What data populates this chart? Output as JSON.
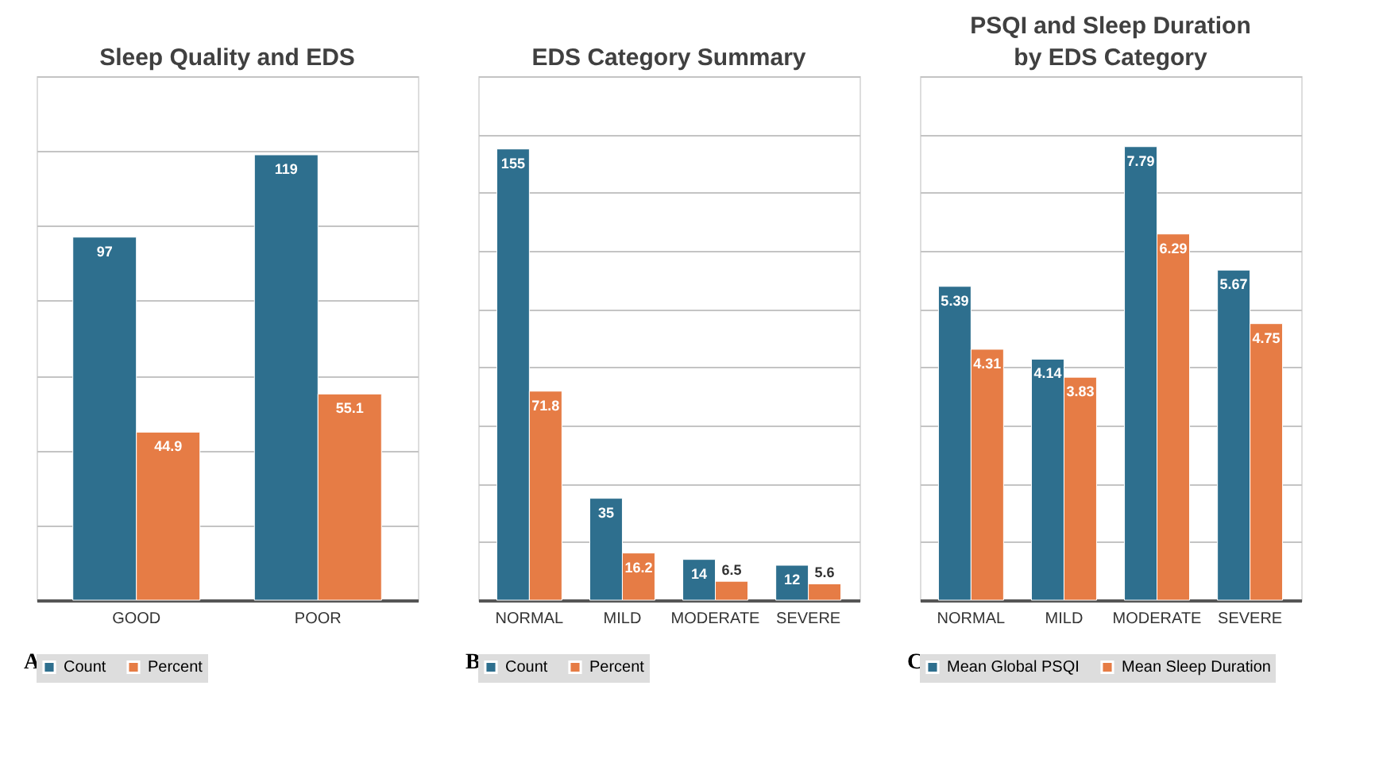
{
  "chart_data": [
    {
      "type": "bar",
      "title": "Sleep Quality and EDS",
      "categories": [
        "GOOD",
        "POOR"
      ],
      "series": [
        {
          "name": "Count",
          "color": "#2e6f8e",
          "values": [
            97,
            119
          ]
        },
        {
          "name": "Percent",
          "color": "#e67c45",
          "values": [
            44.9,
            55.1
          ]
        }
      ],
      "ylim": [
        0,
        140
      ],
      "yticks": [
        {
          "value": 0,
          "label": null
        },
        {
          "value": 20,
          "label": null
        },
        {
          "value": 40,
          "label": null
        },
        {
          "value": 60,
          "label": null
        },
        {
          "value": 80,
          "label": null
        },
        {
          "value": 100,
          "label": null
        },
        {
          "value": 120,
          "label": null
        },
        {
          "value": 140,
          "label": null
        }
      ],
      "tick_labels": "x",
      "grid": "y",
      "legend": "bottom",
      "data_labels": true,
      "annotations": [
        "A"
      ]
    },
    {
      "type": "bar",
      "title": "EDS Category Summary",
      "categories": [
        "NORMAL",
        "MILD",
        "MODERATE",
        "SEVERE"
      ],
      "series": [
        {
          "name": "Count",
          "color": "#2e6f8e",
          "values": [
            155,
            35,
            14,
            12
          ]
        },
        {
          "name": "Percent",
          "color": "#e67c45",
          "values": [
            71.8,
            16.2,
            6.5,
            5.6
          ]
        }
      ],
      "ylim": [
        0,
        180
      ],
      "yticks": [
        {
          "value": 0,
          "label": null
        },
        {
          "value": 20,
          "label": null
        },
        {
          "value": 40,
          "label": null
        },
        {
          "value": 60,
          "label": null
        },
        {
          "value": 80,
          "label": null
        },
        {
          "value": 100,
          "label": null
        },
        {
          "value": 120,
          "label": null
        },
        {
          "value": 140,
          "label": null
        },
        {
          "value": 160,
          "label": null
        },
        {
          "value": 180,
          "label": null
        }
      ],
      "tick_labels": "x",
      "grid": "y",
      "legend": "bottom",
      "data_labels": true,
      "annotations": [
        "B"
      ]
    },
    {
      "type": "bar",
      "title": "PSQI and Sleep Duration by EDS Category",
      "categories": [
        "NORMAL",
        "MILD",
        "MODERATE",
        "SEVERE"
      ],
      "series": [
        {
          "name": "Mean Global PSQI",
          "color": "#2e6f8e",
          "values": [
            5.39,
            4.14,
            7.79,
            5.67
          ]
        },
        {
          "name": "Mean Sleep Duration",
          "color": "#e67c45",
          "values": [
            4.31,
            3.83,
            6.29,
            4.75
          ]
        }
      ],
      "ylim": [
        0,
        9
      ],
      "yticks": [
        {
          "value": 0,
          "label": null
        },
        {
          "value": 1,
          "label": null
        },
        {
          "value": 2,
          "label": null
        },
        {
          "value": 3,
          "label": null
        },
        {
          "value": 4,
          "label": null
        },
        {
          "value": 5,
          "label": null
        },
        {
          "value": 6,
          "label": null
        },
        {
          "value": 7,
          "label": null
        },
        {
          "value": 8,
          "label": null
        },
        {
          "value": 9,
          "label": null
        }
      ],
      "tick_labels": "x",
      "grid": "y",
      "legend": "bottom",
      "data_labels": true,
      "annotations": [
        "C"
      ]
    }
  ]
}
